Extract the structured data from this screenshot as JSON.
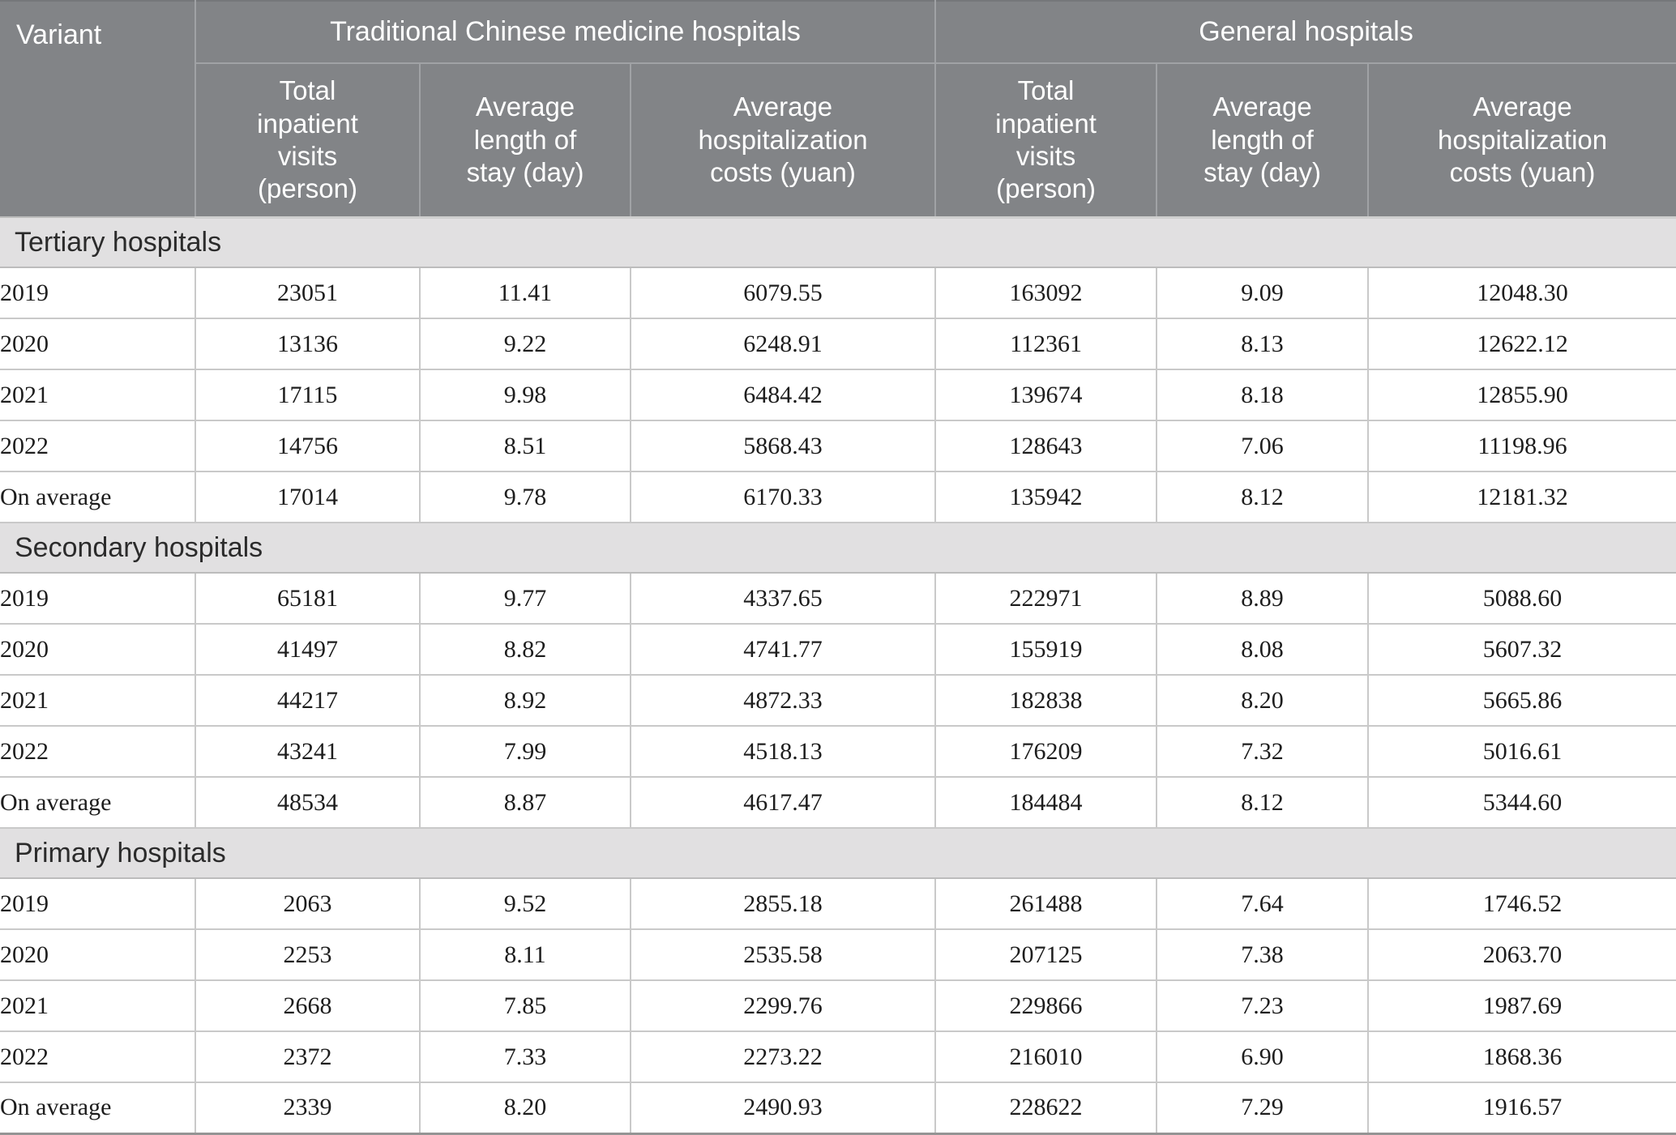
{
  "colors": {
    "header_background": "#828487",
    "header_text": "#ffffff",
    "section_band_background": "#e1e0e1",
    "grid_line": "#c9c9c9",
    "body_text": "#1d1d1d"
  },
  "chart_data": {
    "type": "table",
    "variant_header": "Variant",
    "group_headers": [
      "Traditional Chinese medicine hospitals",
      "General hospitals"
    ],
    "sub_headers": [
      "Total\ninpatient\nvisits\n(person)",
      "Average\nlength of\nstay (day)",
      "Average\nhospitalization\ncosts (yuan)",
      "Total\ninpatient\nvisits\n(person)",
      "Average\nlength of\nstay (day)",
      "Average\nhospitalization\ncosts (yuan)"
    ],
    "sections": [
      {
        "title": "Tertiary hospitals",
        "rows": [
          {
            "variant": "2019",
            "values": [
              "23051",
              "11.41",
              "6079.55",
              "163092",
              "9.09",
              "12048.30"
            ]
          },
          {
            "variant": "2020",
            "values": [
              "13136",
              "9.22",
              "6248.91",
              "112361",
              "8.13",
              "12622.12"
            ]
          },
          {
            "variant": "2021",
            "values": [
              "17115",
              "9.98",
              "6484.42",
              "139674",
              "8.18",
              "12855.90"
            ]
          },
          {
            "variant": "2022",
            "values": [
              "14756",
              "8.51",
              "5868.43",
              "128643",
              "7.06",
              "11198.96"
            ]
          },
          {
            "variant": "On average",
            "values": [
              "17014",
              "9.78",
              "6170.33",
              "135942",
              "8.12",
              "12181.32"
            ]
          }
        ]
      },
      {
        "title": "Secondary hospitals",
        "rows": [
          {
            "variant": "2019",
            "values": [
              "65181",
              "9.77",
              "4337.65",
              "222971",
              "8.89",
              "5088.60"
            ]
          },
          {
            "variant": "2020",
            "values": [
              "41497",
              "8.82",
              "4741.77",
              "155919",
              "8.08",
              "5607.32"
            ]
          },
          {
            "variant": "2021",
            "values": [
              "44217",
              "8.92",
              "4872.33",
              "182838",
              "8.20",
              "5665.86"
            ]
          },
          {
            "variant": "2022",
            "values": [
              "43241",
              "7.99",
              "4518.13",
              "176209",
              "7.32",
              "5016.61"
            ]
          },
          {
            "variant": "On average",
            "values": [
              "48534",
              "8.87",
              "4617.47",
              "184484",
              "8.12",
              "5344.60"
            ]
          }
        ]
      },
      {
        "title": "Primary hospitals",
        "rows": [
          {
            "variant": "2019",
            "values": [
              "2063",
              "9.52",
              "2855.18",
              "261488",
              "7.64",
              "1746.52"
            ]
          },
          {
            "variant": "2020",
            "values": [
              "2253",
              "8.11",
              "2535.58",
              "207125",
              "7.38",
              "2063.70"
            ]
          },
          {
            "variant": "2021",
            "values": [
              "2668",
              "7.85",
              "2299.76",
              "229866",
              "7.23",
              "1987.69"
            ]
          },
          {
            "variant": "2022",
            "values": [
              "2372",
              "7.33",
              "2273.22",
              "216010",
              "6.90",
              "1868.36"
            ]
          },
          {
            "variant": "On average",
            "values": [
              "2339",
              "8.20",
              "2490.93",
              "228622",
              "7.29",
              "1916.57"
            ]
          }
        ]
      }
    ]
  }
}
